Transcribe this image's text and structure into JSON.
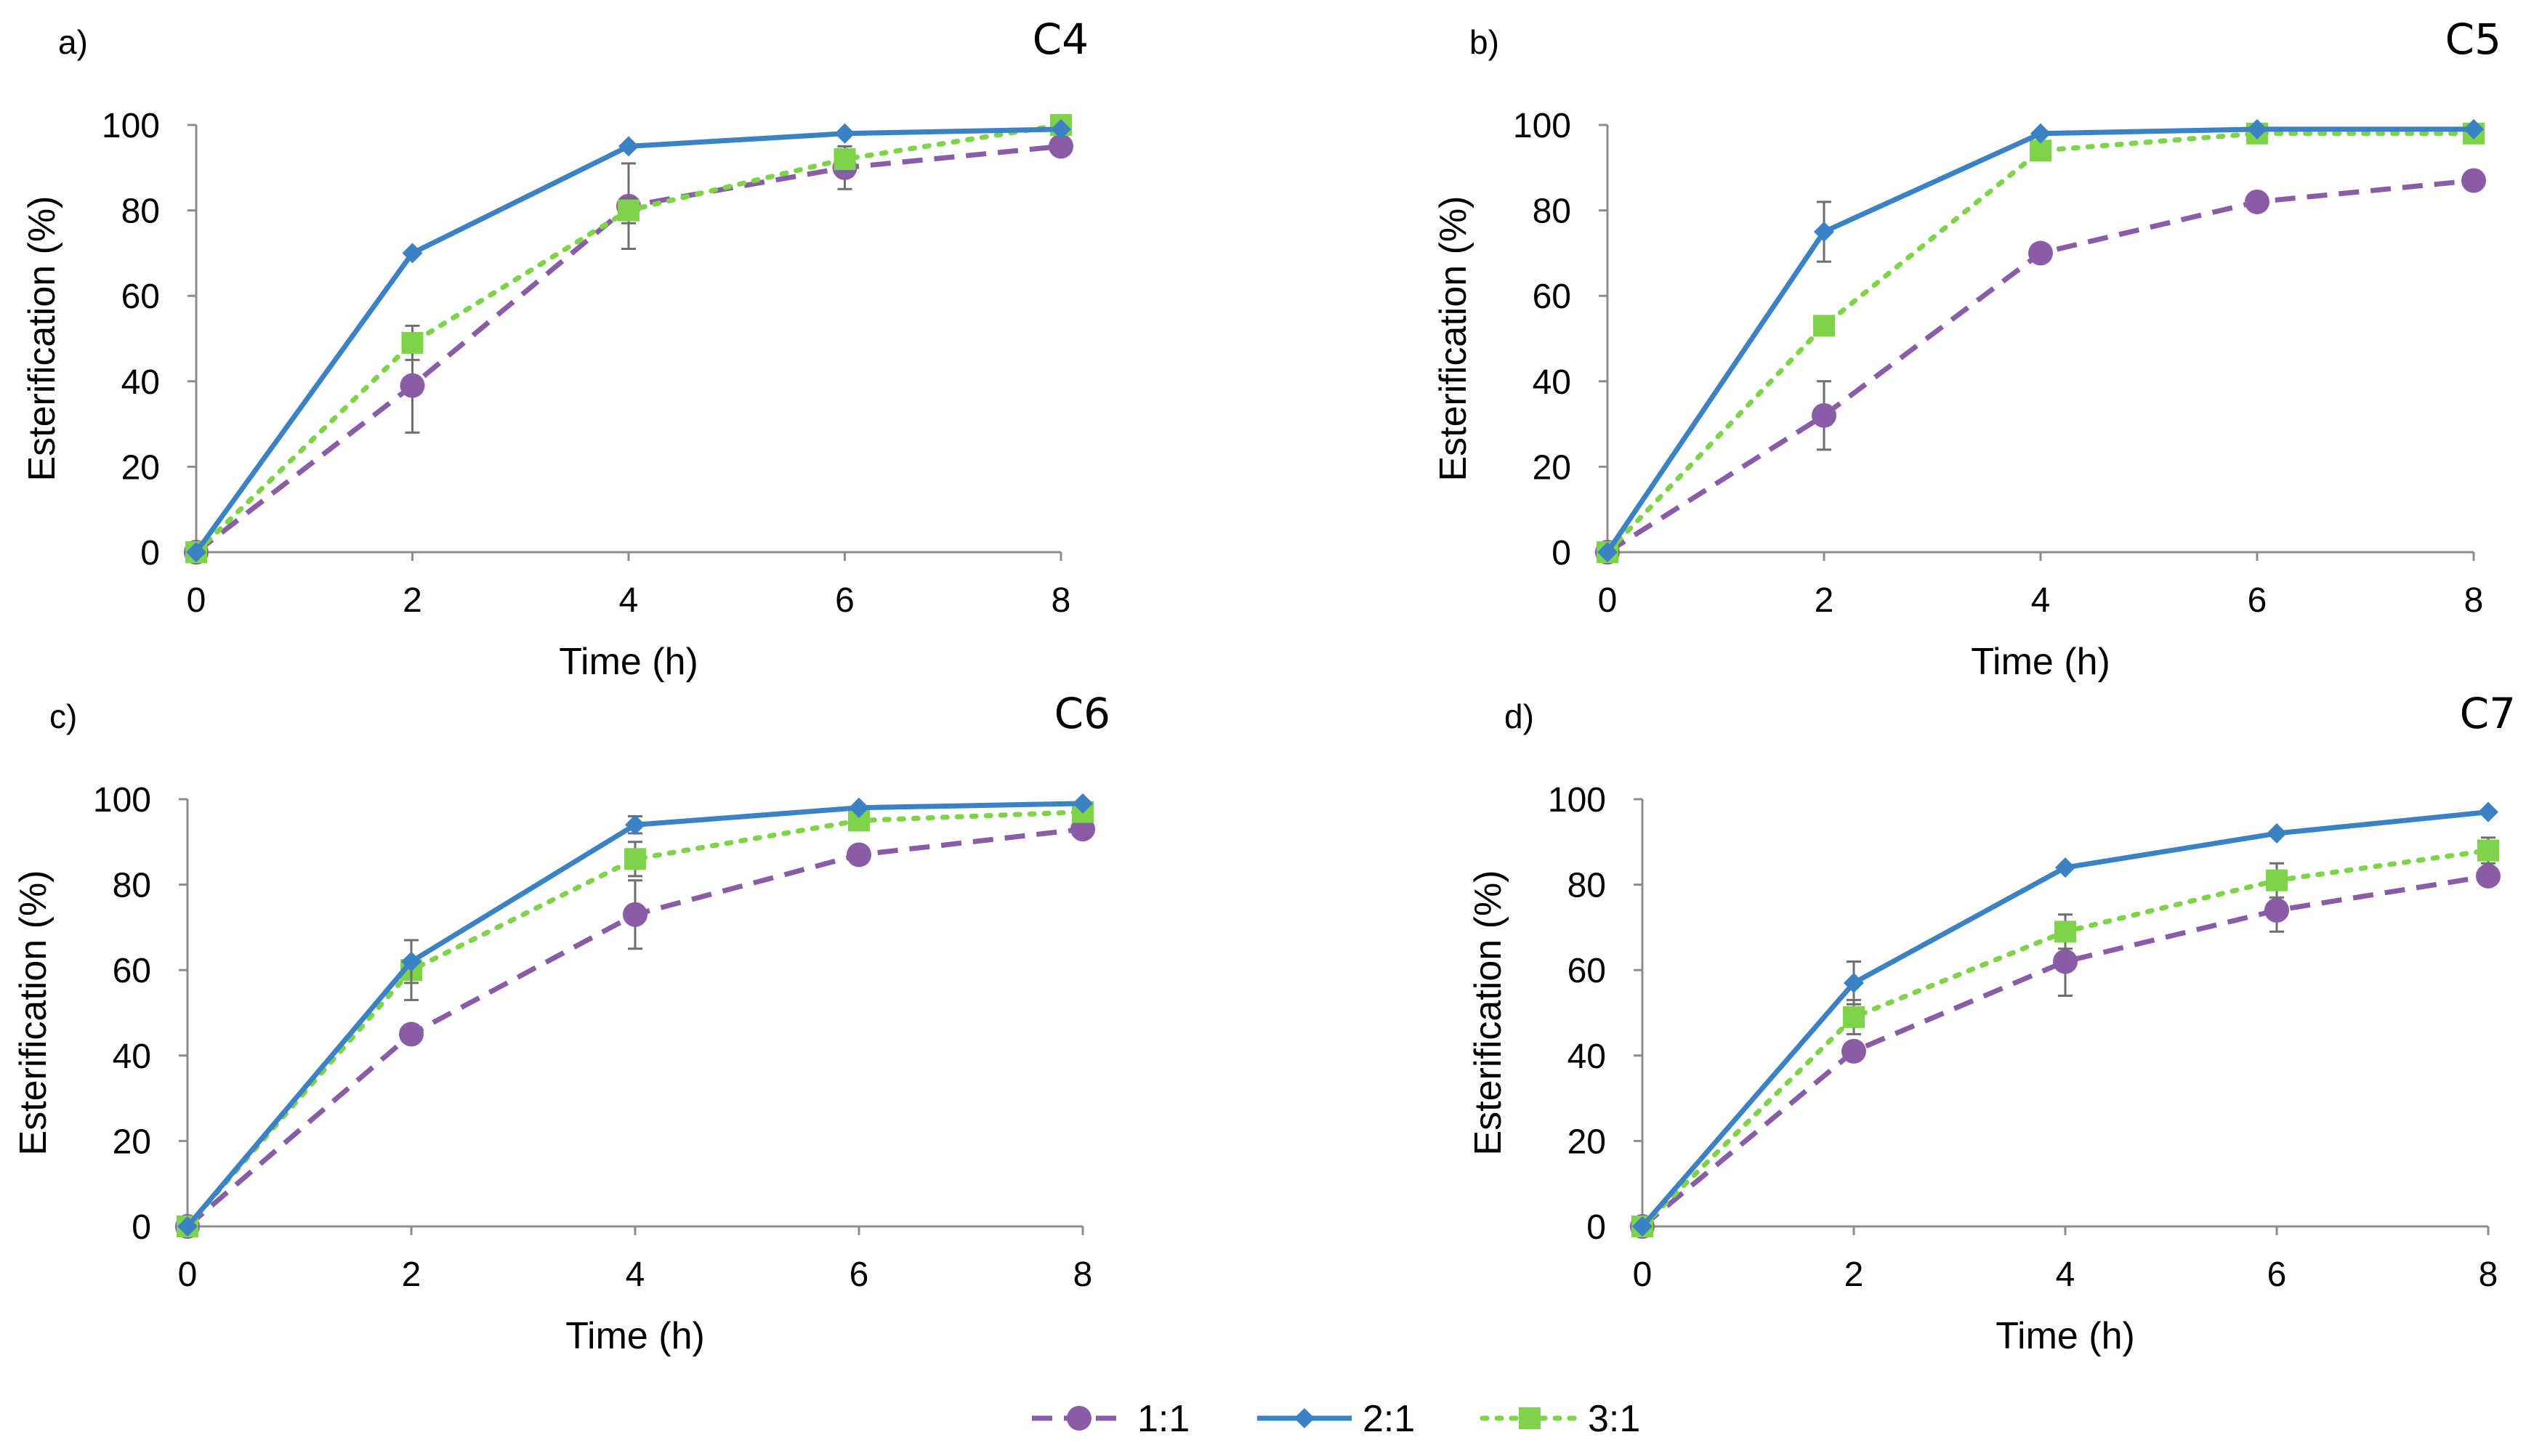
{
  "legend": {
    "items": [
      {
        "label": "1:1",
        "color": "#8a5ca8",
        "dash": "dashed",
        "marker": "circle"
      },
      {
        "label": "2:1",
        "color": "#3b82c4",
        "dash": "solid",
        "marker": "diamond"
      },
      {
        "label": "3:1",
        "color": "#7ed348",
        "dash": "dotted",
        "marker": "square"
      }
    ]
  },
  "chart_data": [
    {
      "type": "line",
      "panel_letter": "a)",
      "title": "C4",
      "xlabel": "Time (h)",
      "ylabel": "Esterification (%)",
      "x": [
        0,
        2,
        4,
        6,
        8
      ],
      "x_ticks": [
        "0",
        "2",
        "4",
        "6",
        "8"
      ],
      "y_ticks": [
        "0",
        "20",
        "40",
        "60",
        "80",
        "100"
      ],
      "xlim": [
        0,
        8
      ],
      "ylim": [
        0,
        100
      ],
      "series": [
        {
          "name": "1:1",
          "values": [
            0,
            39,
            81,
            90,
            95
          ],
          "errors": [
            0,
            11,
            10,
            5,
            0
          ]
        },
        {
          "name": "2:1",
          "values": [
            0,
            70,
            95,
            98,
            99
          ],
          "errors": [
            0,
            0,
            0,
            0,
            0
          ]
        },
        {
          "name": "3:1",
          "values": [
            0,
            49,
            80,
            92,
            100
          ],
          "errors": [
            0,
            4,
            3,
            3,
            0
          ]
        }
      ]
    },
    {
      "type": "line",
      "panel_letter": "b)",
      "title": "C5",
      "xlabel": "Time (h)",
      "ylabel": "Esterification (%)",
      "x": [
        0,
        2,
        4,
        6,
        8
      ],
      "x_ticks": [
        "0",
        "2",
        "4",
        "6",
        "8"
      ],
      "y_ticks": [
        "0",
        "20",
        "40",
        "60",
        "80",
        "100"
      ],
      "xlim": [
        0,
        8
      ],
      "ylim": [
        0,
        100
      ],
      "series": [
        {
          "name": "1:1",
          "values": [
            0,
            32,
            70,
            82,
            87
          ],
          "errors": [
            0,
            8,
            0,
            0,
            0
          ]
        },
        {
          "name": "2:1",
          "values": [
            0,
            75,
            98,
            99,
            99
          ],
          "errors": [
            0,
            7,
            0,
            0,
            0
          ]
        },
        {
          "name": "3:1",
          "values": [
            0,
            53,
            94,
            98,
            98
          ],
          "errors": [
            0,
            0,
            0,
            0,
            0
          ]
        }
      ]
    },
    {
      "type": "line",
      "panel_letter": "c)",
      "title": "C6",
      "xlabel": "Time (h)",
      "ylabel": "Esterification (%)",
      "x": [
        0,
        2,
        4,
        6,
        8
      ],
      "x_ticks": [
        "0",
        "2",
        "4",
        "6",
        "8"
      ],
      "y_ticks": [
        "0",
        "20",
        "40",
        "60",
        "80",
        "100"
      ],
      "xlim": [
        0,
        8
      ],
      "ylim": [
        0,
        100
      ],
      "series": [
        {
          "name": "1:1",
          "values": [
            0,
            45,
            73,
            87,
            93
          ],
          "errors": [
            0,
            0,
            8,
            0,
            0
          ]
        },
        {
          "name": "2:1",
          "values": [
            0,
            62,
            94,
            98,
            99
          ],
          "errors": [
            0,
            5,
            2,
            0,
            0
          ]
        },
        {
          "name": "3:1",
          "values": [
            0,
            60,
            86,
            95,
            97
          ],
          "errors": [
            0,
            7,
            4,
            0,
            0
          ]
        }
      ]
    },
    {
      "type": "line",
      "panel_letter": "d)",
      "title": "C7",
      "xlabel": "Time (h)",
      "ylabel": "Esterification (%)",
      "x": [
        0,
        2,
        4,
        6,
        8
      ],
      "x_ticks": [
        "0",
        "2",
        "4",
        "6",
        "8"
      ],
      "y_ticks": [
        "0",
        "20",
        "40",
        "60",
        "80",
        "100"
      ],
      "xlim": [
        0,
        8
      ],
      "ylim": [
        0,
        100
      ],
      "series": [
        {
          "name": "1:1",
          "values": [
            0,
            41,
            62,
            74,
            82
          ],
          "errors": [
            0,
            0,
            8,
            5,
            0
          ]
        },
        {
          "name": "2:1",
          "values": [
            0,
            57,
            84,
            92,
            97
          ],
          "errors": [
            0,
            5,
            0,
            0,
            0
          ]
        },
        {
          "name": "3:1",
          "values": [
            0,
            49,
            69,
            81,
            88
          ],
          "errors": [
            0,
            4,
            4,
            4,
            3
          ]
        }
      ]
    }
  ]
}
